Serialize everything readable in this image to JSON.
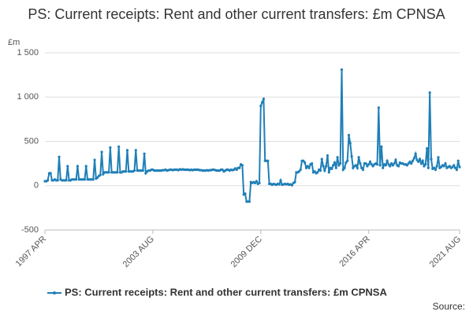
{
  "chart_data": {
    "type": "line",
    "title": "PS: Current receipts: Rent and other current transfers: £m CPNSA",
    "y_unit": "£m",
    "source": "Source:",
    "legend": "bottom",
    "grid": true,
    "ylim": [
      -500,
      1500
    ],
    "yticks": [
      -500,
      0,
      500,
      {
        "value": 1000,
        "label": "1 000"
      },
      {
        "value": 1500,
        "label": "1 500"
      }
    ],
    "categories": [
      "1997 APR",
      null,
      null,
      null,
      null,
      null,
      null,
      null,
      null,
      null,
      null,
      null,
      null,
      null,
      null,
      null,
      null,
      null,
      null,
      null,
      null,
      null,
      null,
      null,
      null,
      null,
      null,
      null,
      null,
      null,
      null,
      null,
      null,
      null,
      null,
      null,
      null,
      null,
      null,
      null,
      null,
      null,
      null,
      null,
      null,
      null,
      null,
      null,
      null,
      null,
      null,
      null,
      null,
      null,
      null,
      null,
      null,
      null,
      null,
      null,
      null,
      null,
      null,
      null,
      null,
      null,
      null,
      null,
      null,
      null,
      null,
      null,
      null,
      null,
      null,
      null,
      "2003 AUG",
      null,
      null,
      null,
      null,
      null,
      null,
      null,
      null,
      null,
      null,
      null,
      null,
      null,
      null,
      null,
      null,
      null,
      null,
      null,
      null,
      null,
      null,
      null,
      null,
      null,
      null,
      null,
      null,
      null,
      null,
      null,
      null,
      null,
      null,
      null,
      null,
      null,
      null,
      null,
      null,
      null,
      null,
      null,
      null,
      null,
      null,
      null,
      null,
      null,
      null,
      null,
      null,
      null,
      null,
      null,
      null,
      null,
      null,
      null,
      null,
      null,
      null,
      null,
      null,
      null,
      null,
      null,
      null,
      null,
      null,
      null,
      null,
      null,
      null,
      null,
      "2009 DEC",
      null,
      null,
      null,
      null,
      null,
      null,
      null,
      null,
      null,
      null,
      null,
      null,
      null,
      null,
      null,
      null,
      null,
      null,
      null,
      null,
      null,
      null,
      null,
      null,
      null,
      null,
      null,
      null,
      null,
      null,
      null,
      null,
      null,
      null,
      null,
      null,
      null,
      null,
      null,
      null,
      null,
      null,
      null,
      null,
      null,
      null,
      null,
      null,
      null,
      null,
      null,
      null,
      null,
      null,
      null,
      null,
      null,
      null,
      null,
      null,
      null,
      null,
      null,
      null,
      null,
      null,
      null,
      null,
      null,
      null,
      null,
      null,
      null,
      null,
      null,
      "2016 APR",
      null,
      null,
      null,
      null,
      null,
      null,
      null,
      null,
      null,
      null,
      null,
      null,
      null,
      null,
      null,
      null,
      null,
      null,
      null,
      null,
      null,
      null,
      null,
      null,
      null,
      null,
      null,
      null,
      null,
      null,
      null,
      null,
      null,
      null,
      null,
      null,
      null,
      null,
      null,
      null,
      null,
      null,
      null,
      null,
      null,
      null,
      null,
      null,
      null,
      null,
      null,
      null,
      null,
      null,
      null,
      null,
      null,
      null,
      null,
      null,
      null,
      null,
      null,
      "2021 AUG"
    ],
    "series": [
      {
        "name": "PS: Current receipts: Rent and other current transfers: £m CPNSA",
        "color": "#1f7fb7",
        "values": [
          50,
          50,
          60,
          140,
          140,
          60,
          60,
          70,
          60,
          60,
          325,
          70,
          60,
          60,
          60,
          60,
          220,
          60,
          60,
          70,
          70,
          70,
          70,
          220,
          70,
          70,
          70,
          70,
          70,
          220,
          70,
          70,
          70,
          70,
          70,
          290,
          80,
          90,
          110,
          120,
          380,
          130,
          150,
          150,
          150,
          150,
          430,
          150,
          150,
          150,
          150,
          150,
          440,
          150,
          150,
          160,
          160,
          160,
          400,
          160,
          160,
          160,
          160,
          170,
          400,
          170,
          170,
          170,
          170,
          170,
          360,
          140,
          160,
          170,
          170,
          180,
          180,
          170,
          170,
          170,
          170,
          170,
          170,
          175,
          175,
          180,
          170,
          175,
          180,
          180,
          175,
          180,
          180,
          180,
          175,
          185,
          180,
          185,
          180,
          180,
          180,
          180,
          175,
          180,
          175,
          180,
          180,
          180,
          180,
          175,
          175,
          170,
          170,
          170,
          175,
          170,
          175,
          175,
          180,
          180,
          175,
          170,
          170,
          170,
          180,
          180,
          160,
          170,
          180,
          180,
          170,
          180,
          175,
          180,
          195,
          180,
          200,
          200,
          240,
          230,
          -100,
          -90,
          -180,
          -180,
          -180,
          40,
          30,
          40,
          30,
          50,
          20,
          30,
          900,
          940,
          980,
          280,
          280,
          280,
          20,
          20,
          10,
          20,
          15,
          10,
          20,
          15,
          60,
          10,
          15,
          20,
          15,
          20,
          10,
          15,
          5,
          30,
          40,
          150,
          150,
          160,
          180,
          280,
          280,
          260,
          200,
          220,
          200,
          240,
          250,
          150,
          160,
          140,
          150,
          180,
          170,
          300,
          220,
          170,
          220,
          340,
          150,
          200,
          190,
          230,
          260,
          200,
          320,
          230,
          250,
          1310,
          180,
          200,
          260,
          280,
          570,
          480,
          330,
          200,
          220,
          230,
          200,
          320,
          250,
          200,
          180,
          250,
          250,
          220,
          240,
          270,
          240,
          220,
          240,
          250,
          240,
          880,
          230,
          440,
          200,
          240,
          230,
          280,
          240,
          220,
          250,
          230,
          250,
          290,
          230,
          220,
          260,
          250,
          250,
          240,
          240,
          230,
          250,
          270,
          250,
          280,
          310,
          360,
          290,
          270,
          300,
          250,
          280,
          220,
          240,
          420,
          200,
          1050,
          300,
          190,
          200,
          180,
          220,
          320,
          200,
          210,
          230,
          220,
          250,
          200,
          210,
          220,
          200,
          210,
          230,
          200,
          180,
          280,
          210
        ]
      }
    ]
  }
}
